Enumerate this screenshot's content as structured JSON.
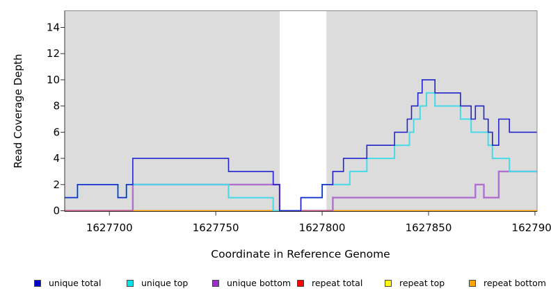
{
  "chart_data": {
    "type": "line",
    "subtype": "step",
    "title": "",
    "xlabel": "Coordinate in Reference Genome",
    "ylabel": "Read Coverage Depth",
    "xlim": [
      1627679,
      1627901
    ],
    "ylim": [
      0,
      15.3
    ],
    "x_ticks": [
      "1627700",
      "1627750",
      "1627800",
      "1627850",
      "1627900"
    ],
    "x_tick_values": [
      1627700,
      1627750,
      1627800,
      1627850,
      1627900
    ],
    "y_ticks": [
      "0",
      "2",
      "4",
      "6",
      "8",
      "10",
      "12",
      "14"
    ],
    "y_tick_values": [
      0,
      2,
      4,
      6,
      8,
      10,
      12,
      14
    ],
    "grid": false,
    "legend_position": "bottom",
    "plot_bg": "#dcdcdc",
    "no_data_band": {
      "x0": 1627780,
      "x1": 1627802,
      "color": "#ffffff"
    },
    "series": [
      {
        "name": "unique total",
        "color": "#2222cc",
        "legend_color": "#0000cd",
        "z": 6,
        "lw": 1.6,
        "points": [
          [
            1627679,
            1
          ],
          [
            1627685,
            2
          ],
          [
            1627704,
            1
          ],
          [
            1627708,
            2
          ],
          [
            1627711,
            4
          ],
          [
            1627756,
            3
          ],
          [
            1627777,
            2
          ],
          [
            1627780,
            0
          ],
          [
            1627790,
            1
          ],
          [
            1627800,
            2
          ],
          [
            1627805,
            3
          ],
          [
            1627810,
            4
          ],
          [
            1627821,
            5
          ],
          [
            1627834,
            6
          ],
          [
            1627840,
            7
          ],
          [
            1627842,
            8
          ],
          [
            1627845,
            9
          ],
          [
            1627847,
            10
          ],
          [
            1627853,
            9
          ],
          [
            1627865,
            8
          ],
          [
            1627870,
            7
          ],
          [
            1627872,
            8
          ],
          [
            1627876,
            7
          ],
          [
            1627878,
            6
          ],
          [
            1627880,
            5
          ],
          [
            1627883,
            7
          ],
          [
            1627888,
            6
          ]
        ]
      },
      {
        "name": "unique top",
        "color": "#45d9e6",
        "legend_color": "#00e5e5",
        "z": 5,
        "lw": 2.0,
        "points": [
          [
            1627679,
            1
          ],
          [
            1627685,
            2
          ],
          [
            1627704,
            1
          ],
          [
            1627708,
            2
          ],
          [
            1627756,
            1
          ],
          [
            1627777,
            0
          ],
          [
            1627790,
            1
          ],
          [
            1627800,
            2
          ],
          [
            1627813,
            3
          ],
          [
            1627821,
            4
          ],
          [
            1627834,
            5
          ],
          [
            1627841,
            6
          ],
          [
            1627843,
            7
          ],
          [
            1627846,
            8
          ],
          [
            1627849,
            9
          ],
          [
            1627853,
            8
          ],
          [
            1627865,
            7
          ],
          [
            1627870,
            6
          ],
          [
            1627878,
            5
          ],
          [
            1627880,
            4
          ],
          [
            1627888,
            3
          ]
        ]
      },
      {
        "name": "unique bottom",
        "color": "#b06fd0",
        "legend_color": "#9932cc",
        "z": 4,
        "lw": 2.4,
        "points": [
          [
            1627679,
            0
          ],
          [
            1627711,
            2
          ],
          [
            1627780,
            0
          ],
          [
            1627805,
            1
          ],
          [
            1627872,
            2
          ],
          [
            1627876,
            1
          ],
          [
            1627883,
            3
          ]
        ]
      },
      {
        "name": "repeat total",
        "color": "#ee2222",
        "legend_color": "#ff0000",
        "z": 2,
        "lw": 1.4,
        "points": [
          [
            1627679,
            0
          ]
        ]
      },
      {
        "name": "repeat top",
        "color": "#ffff00",
        "legend_color": "#ffff00",
        "z": 1,
        "lw": 1.4,
        "points": [
          [
            1627679,
            0
          ]
        ]
      },
      {
        "name": "repeat bottom",
        "color": "#ffa500",
        "legend_color": "#ffa500",
        "z": 3,
        "lw": 1.8,
        "points": [
          [
            1627679,
            0
          ]
        ]
      }
    ],
    "baseline_blend": {
      "color": "#d05c7e",
      "lw": 1.7,
      "z": 4.5,
      "segments": [
        [
          1627679,
          1627711
        ],
        [
          1627790,
          1627805
        ]
      ]
    }
  }
}
